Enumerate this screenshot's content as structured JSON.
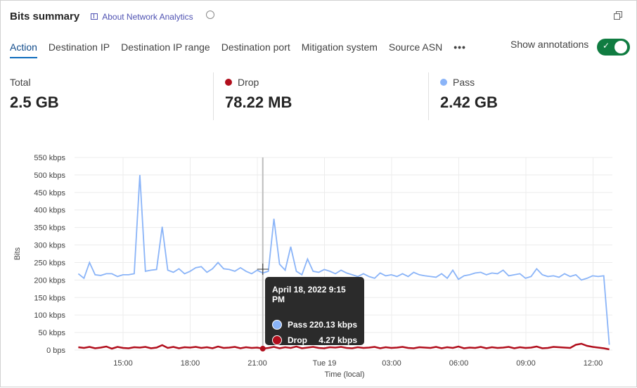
{
  "header": {
    "title": "Bits summary",
    "about_link": "About Network Analytics",
    "icons": [
      "book-icon",
      "clock-icon",
      "popout-icon"
    ]
  },
  "tabs": [
    {
      "label": "Action",
      "active": true
    },
    {
      "label": "Destination IP"
    },
    {
      "label": "Destination IP range"
    },
    {
      "label": "Destination port"
    },
    {
      "label": "Mitigation system"
    },
    {
      "label": "Source ASN"
    },
    {
      "label": "•••"
    }
  ],
  "annotations": {
    "label": "Show annotations",
    "on": true
  },
  "stats": [
    {
      "label": "Total",
      "value": "2.5 GB"
    },
    {
      "label": "Drop",
      "value": "78.22 MB",
      "color": "#b10e1c"
    },
    {
      "label": "Pass",
      "value": "2.42 GB",
      "color": "#8ab4f8"
    }
  ],
  "tooltip": {
    "title": "April 18, 2022 9:15 PM",
    "rows": [
      {
        "label": "Pass",
        "value": "220.13 kbps",
        "color": "#8ab4f8"
      },
      {
        "label": "Drop",
        "value": "4.27 kbps",
        "color": "#b10e1c"
      }
    ]
  },
  "chart_data": {
    "type": "line",
    "ylabel": "Bits",
    "xlabel": "Time (local)",
    "ylim": [
      0,
      550
    ],
    "grid": true,
    "y_ticks": [
      "0 bps",
      "50 kbps",
      "100 kbps",
      "150 kbps",
      "200 kbps",
      "250 kbps",
      "300 kbps",
      "350 kbps",
      "400 kbps",
      "450 kbps",
      "500 kbps",
      "550 kbps"
    ],
    "x_ticks": [
      "15:00",
      "18:00",
      "21:00",
      "Tue 19",
      "03:00",
      "06:00",
      "09:00",
      "12:00"
    ],
    "x_start": "April 18, 2022 1:00 PM",
    "x_interval": "15 min",
    "series": [
      {
        "name": "Pass",
        "color": "#8ab4f8",
        "values": [
          218,
          205,
          250,
          215,
          213,
          218,
          218,
          210,
          215,
          215,
          218,
          500,
          225,
          228,
          230,
          352,
          228,
          222,
          232,
          218,
          225,
          235,
          238,
          222,
          232,
          250,
          232,
          230,
          225,
          235,
          225,
          218,
          228,
          220,
          225,
          375,
          245,
          228,
          295,
          225,
          215,
          260,
          225,
          222,
          230,
          225,
          218,
          228,
          220,
          215,
          210,
          218,
          210,
          205,
          220,
          212,
          215,
          210,
          218,
          210,
          222,
          215,
          212,
          210,
          208,
          218,
          205,
          228,
          202,
          212,
          215,
          220,
          222,
          215,
          220,
          218,
          228,
          212,
          215,
          218,
          205,
          210,
          232,
          215,
          210,
          212,
          208,
          218,
          210,
          215,
          200,
          205,
          212,
          210,
          212,
          15
        ]
      },
      {
        "name": "Drop",
        "color": "#b10e1c",
        "values": [
          8,
          6,
          9,
          5,
          7,
          10,
          4,
          9,
          6,
          5,
          8,
          7,
          9,
          5,
          7,
          14,
          6,
          9,
          5,
          8,
          7,
          9,
          6,
          8,
          5,
          10,
          6,
          7,
          9,
          5,
          8,
          6,
          7,
          4,
          6,
          9,
          5,
          8,
          6,
          10,
          5,
          7,
          9,
          6,
          5,
          8,
          7,
          9,
          6,
          5,
          8,
          6,
          7,
          9,
          5,
          8,
          6,
          7,
          9,
          6,
          5,
          8,
          7,
          6,
          9,
          5,
          8,
          6,
          10,
          5,
          7,
          6,
          9,
          5,
          8,
          6,
          7,
          9,
          5,
          8,
          6,
          7,
          10,
          5,
          6,
          9,
          8,
          7,
          6,
          15,
          18,
          12,
          9,
          7,
          5,
          2
        ]
      }
    ],
    "hover": {
      "index": 33
    }
  }
}
